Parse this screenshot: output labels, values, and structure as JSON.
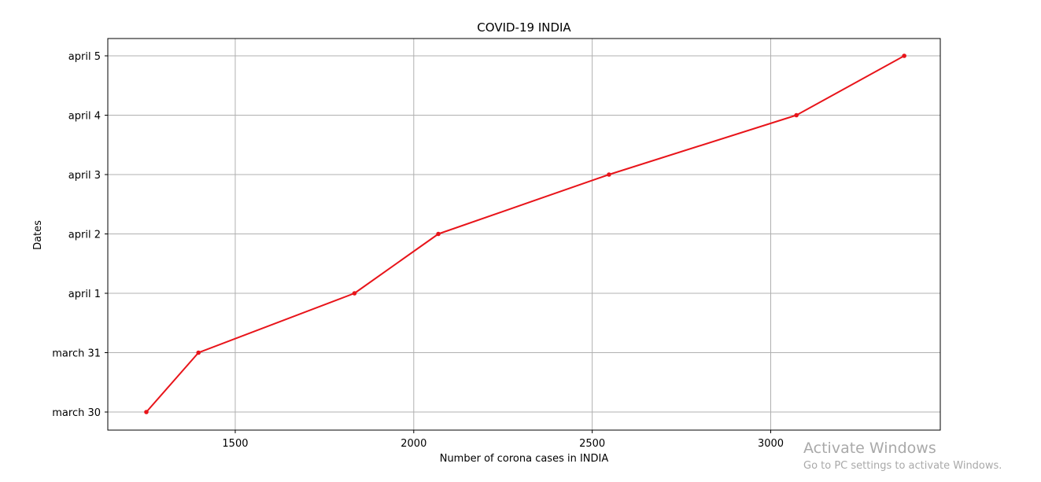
{
  "chart_data": {
    "type": "line",
    "title": "COVID-19 INDIA",
    "xlabel": "Number of corona cases in INDIA",
    "ylabel": "Dates",
    "x_ticks": [
      1500,
      2000,
      2500,
      3000
    ],
    "xlim": [
      1143,
      3475
    ],
    "categories": [
      "march 30",
      "march 31",
      "april 1",
      "april 2",
      "april 3",
      "april 4",
      "april 5"
    ],
    "series": [
      {
        "x": [
          1251,
          1397,
          1834,
          2069,
          2547,
          3072,
          3374
        ],
        "y": [
          "march 30",
          "march 31",
          "april 1",
          "april 2",
          "april 3",
          "april 4",
          "april 5"
        ],
        "color": "#e8141a",
        "marker": "dot"
      }
    ],
    "grid": true
  },
  "watermark": {
    "title": "Activate Windows",
    "subtitle": "Go to PC settings to activate Windows."
  }
}
